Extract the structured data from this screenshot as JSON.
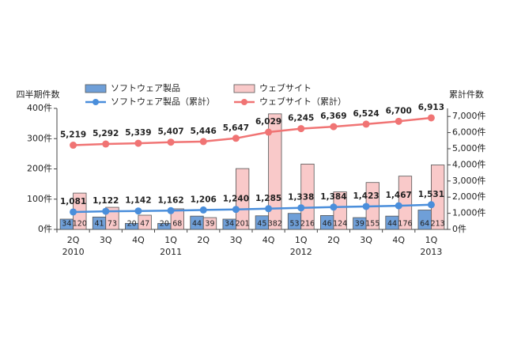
{
  "chart_data": {
    "type": "bar-line",
    "y_label": "四半期件数",
    "y2_label": "累計件数",
    "categories": [
      "2Q",
      "3Q",
      "4Q",
      "1Q",
      "2Q",
      "3Q",
      "4Q",
      "1Q",
      "2Q",
      "3Q",
      "4Q",
      "1Q"
    ],
    "year_labels": [
      "2010",
      null,
      null,
      "2011",
      null,
      null,
      null,
      "2012",
      null,
      null,
      null,
      "2013"
    ],
    "ylim": [
      0,
      400
    ],
    "yticks": [
      {
        "value": 0,
        "label": "0件"
      },
      {
        "value": 100,
        "label": "100件"
      },
      {
        "value": 200,
        "label": "200件"
      },
      {
        "value": 300,
        "label": "300件"
      },
      {
        "value": 400,
        "label": "400件"
      }
    ],
    "y2lim": [
      0,
      7500
    ],
    "y2ticks": [
      {
        "value": 0,
        "label": "0件"
      },
      {
        "value": 1000,
        "label": "1,000件"
      },
      {
        "value": 2000,
        "label": "2,000件"
      },
      {
        "value": 3000,
        "label": "3,000件"
      },
      {
        "value": 4000,
        "label": "4,000件"
      },
      {
        "value": 5000,
        "label": "5,000件"
      },
      {
        "value": 6000,
        "label": "6,000件"
      },
      {
        "value": 7000,
        "label": "7,000件"
      }
    ],
    "grid": false,
    "legend": "top",
    "series": [
      {
        "name": "ソフトウェア製品",
        "kind": "bar",
        "color": "#6f9fd8",
        "values": [
          34,
          41,
          20,
          20,
          44,
          34,
          45,
          53,
          46,
          39,
          44,
          64
        ]
      },
      {
        "name": "ウェブサイト",
        "kind": "bar",
        "color": "#f9c9c9",
        "values": [
          120,
          73,
          47,
          68,
          39,
          201,
          382,
          216,
          124,
          155,
          176,
          213
        ]
      },
      {
        "name": "ソフトウェア製品（累計）",
        "kind": "line",
        "axis": "y2",
        "color": "#4a8edb",
        "values": [
          1081,
          1122,
          1142,
          1162,
          1206,
          1240,
          1285,
          1338,
          1384,
          1423,
          1467,
          1531
        ],
        "value_labels": [
          "1,081",
          "1,122",
          "1,142",
          "1,162",
          "1,206",
          "1,240",
          "1,285",
          "1,338",
          "1,384",
          "1,423",
          "1,467",
          "1,531"
        ]
      },
      {
        "name": "ウェブサイト（累計）",
        "kind": "line",
        "axis": "y2",
        "color": "#f07474",
        "values": [
          5219,
          5292,
          5339,
          5407,
          5446,
          5647,
          6029,
          6245,
          6369,
          6524,
          6700,
          6913
        ],
        "value_labels": [
          "5,219",
          "5,292",
          "5,339",
          "5,407",
          "5,446",
          "5,647",
          "6,029",
          "6,245",
          "6,369",
          "6,524",
          "6,700",
          "6,913"
        ]
      }
    ]
  }
}
